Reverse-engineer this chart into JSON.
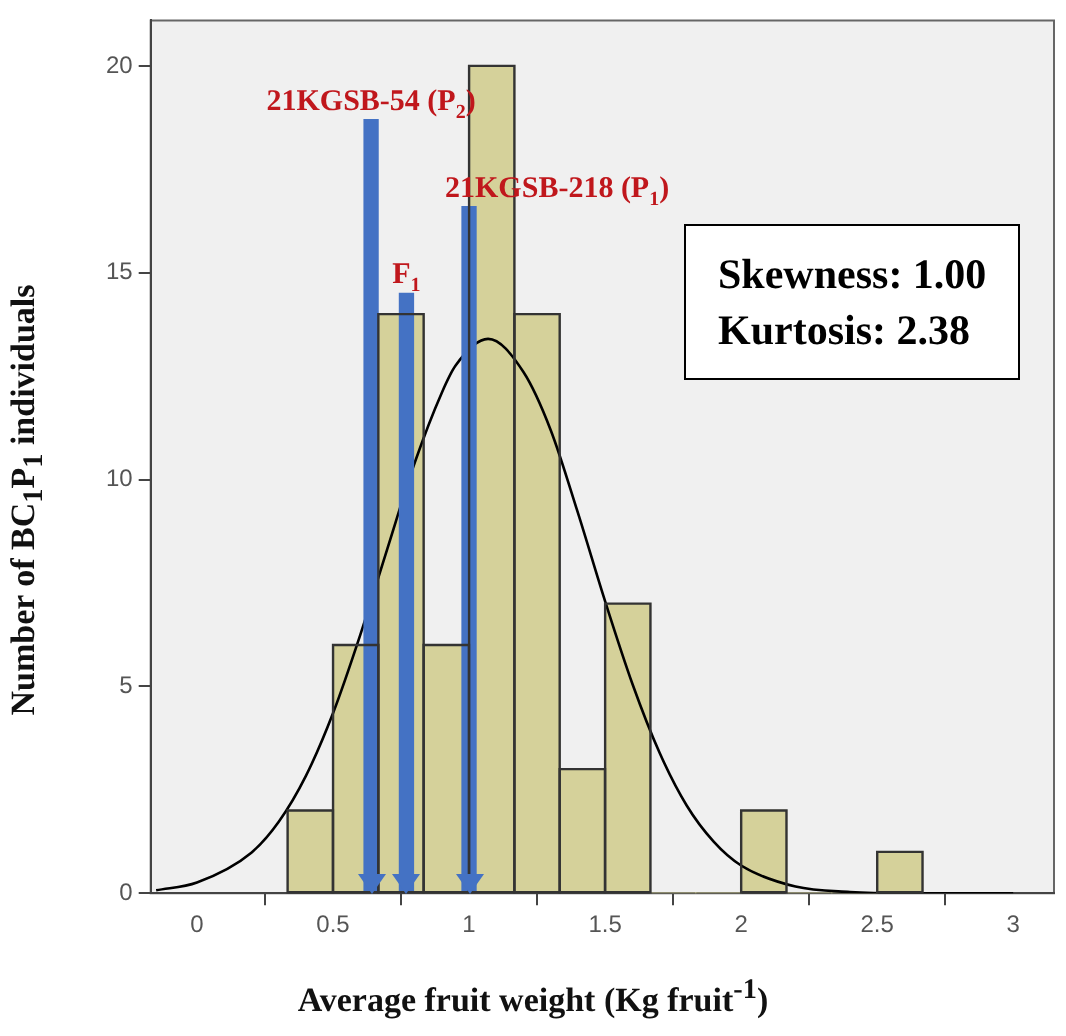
{
  "chart_data": {
    "type": "histogram",
    "xlabel": "Average fruit weight (Kg fruit$^{-1}$)",
    "ylabel": "Number of BC$_{1}$P$_{1}$ individuals",
    "bins": [
      0.333,
      0.5,
      0.667,
      0.833,
      1.0,
      1.167,
      1.333,
      1.5,
      1.667,
      1.833,
      2.0,
      2.167,
      2.333,
      2.5,
      2.667
    ],
    "values": [
      2,
      6,
      14,
      6,
      20,
      14,
      3,
      7,
      0,
      0,
      2,
      0,
      0,
      1
    ],
    "color": "#d5d19a",
    "series": [
      {
        "type": "line",
        "color": "#000000",
        "x": [
          -0.15,
          0,
          0.2,
          0.3,
          0.4,
          0.5,
          0.6,
          0.7,
          0.8,
          0.9,
          0.95,
          1.07,
          1.2,
          1.3,
          1.4,
          1.5,
          1.6,
          1.7,
          1.8,
          1.9,
          2.0,
          2.2,
          2.4,
          2.6,
          3.0
        ],
        "values": [
          0.07,
          0.26,
          0.98,
          1.72,
          2.83,
          4.35,
          6.24,
          8.33,
          10.4,
          12.1,
          12.75,
          13.4,
          12.6,
          11.2,
          9.2,
          7.06,
          5.07,
          3.4,
          2.12,
          1.24,
          0.67,
          0.16,
          0.03,
          0,
          0
        ]
      },
      {
        "type": "bar",
        "name": "21KGSB-54 (P$_{2}$)",
        "color": "#4472c4",
        "x": [
          0.64
        ],
        "values": [
          18.7
        ]
      },
      {
        "type": "bar",
        "name": "F$_{1}$",
        "color": "#4472c4",
        "x": [
          0.77
        ],
        "values": [
          14.5
        ]
      },
      {
        "type": "bar",
        "name": "21KGSB-218 (P$_{1}$)",
        "color": "#4472c4",
        "x": [
          1.0
        ],
        "values": [
          16.6
        ]
      }
    ],
    "xlim": [
      -0.17,
      3.15
    ],
    "xticks": [
      0,
      0.5,
      1,
      1.5,
      2,
      2.5,
      3
    ],
    "ylim": [
      0,
      21.1
    ],
    "yticks": [
      0,
      5,
      10,
      15,
      20
    ],
    "grid": false,
    "legend": false,
    "annotations": [
      "Skewness: 1.00",
      "Kurtosis: 2.38"
    ]
  }
}
